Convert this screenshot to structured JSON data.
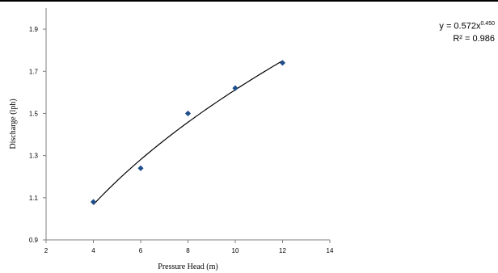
{
  "chart_data": {
    "type": "scatter",
    "x": [
      4,
      6,
      8,
      10,
      12
    ],
    "y": [
      1.08,
      1.24,
      1.5,
      1.62,
      1.74
    ],
    "xlabel": "Pressure Head (m)",
    "ylabel": "Discharge (lph)",
    "xlim": [
      2,
      14
    ],
    "ylim": [
      0.9,
      2.0
    ],
    "xticks": [
      "2",
      "4",
      "6",
      "8",
      "10",
      "12",
      "14"
    ],
    "yticks": [
      "0.9",
      "1.1",
      "1.3",
      "1.5",
      "1.7",
      "1.9"
    ],
    "grid": false,
    "marker": "diamond",
    "marker_color": "#1f4e89",
    "trendline": {
      "type": "power",
      "coefficient": 0.572,
      "exponent": 0.45,
      "x_range": [
        4,
        12
      ],
      "equation_prefix": "y = 0.572x",
      "equation_exponent": "0.450",
      "r2_text": "R² = 0.986"
    }
  }
}
